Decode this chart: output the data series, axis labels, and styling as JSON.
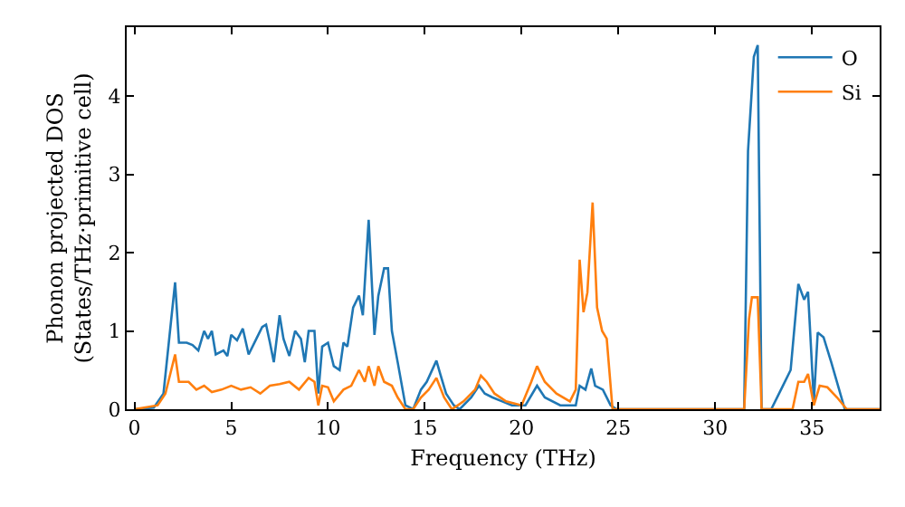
{
  "chart_data": {
    "type": "line",
    "xlabel": "Frequency (THz)",
    "ylabel": "Phonon projected DOS\n(States/THz·primitive cell)",
    "xlim": [
      -0.4,
      38.5
    ],
    "ylim": [
      0,
      4.88
    ],
    "xticks": [
      0,
      5,
      10,
      15,
      20,
      25,
      30,
      35
    ],
    "yticks": [
      0,
      1,
      2,
      3,
      4
    ],
    "grid": false,
    "legend": "top right",
    "series": [
      {
        "name": "O",
        "color": "#1f77b4",
        "x": [
          0,
          1,
          1.5,
          2.1,
          2.3,
          2.7,
          3,
          3.3,
          3.6,
          3.8,
          4,
          4.2,
          4.6,
          4.8,
          5,
          5.3,
          5.6,
          5.9,
          6.3,
          6.6,
          6.8,
          7,
          7.2,
          7.5,
          7.7,
          8,
          8.3,
          8.6,
          8.8,
          9,
          9.3,
          9.5,
          9.7,
          10,
          10.3,
          10.6,
          10.8,
          11,
          11.3,
          11.6,
          11.8,
          12.1,
          12.4,
          12.6,
          12.9,
          13.1,
          13.3,
          13.6,
          14,
          14.4,
          14.8,
          15.1,
          15.6,
          15.8,
          16.1,
          16.5,
          16.8,
          17.4,
          17.8,
          18.1,
          18.5,
          19,
          19.5,
          20.2,
          20.8,
          21.2,
          22,
          22.8,
          23,
          23.3,
          23.6,
          23.8,
          24.2,
          24.6,
          24.9,
          31.5,
          31.7,
          32,
          32.2,
          32.4,
          32.9,
          33.5,
          33.9,
          34.3,
          34.6,
          34.8,
          35.1,
          35.3,
          35.6,
          36,
          36.7,
          38.5
        ],
        "values": [
          0,
          0.02,
          0.2,
          1.62,
          0.85,
          0.85,
          0.82,
          0.75,
          1,
          0.9,
          1,
          0.7,
          0.75,
          0.68,
          0.95,
          0.88,
          1.03,
          0.7,
          0.9,
          1.05,
          1.08,
          0.85,
          0.6,
          1.2,
          0.9,
          0.68,
          1,
          0.9,
          0.6,
          1,
          1,
          0.2,
          0.8,
          0.85,
          0.55,
          0.5,
          0.85,
          0.8,
          1.3,
          1.45,
          1.2,
          2.42,
          0.95,
          1.45,
          1.8,
          1.8,
          1,
          0.6,
          0.05,
          0,
          0.25,
          0.35,
          0.62,
          0.45,
          0.2,
          0.05,
          0,
          0.15,
          0.3,
          0.2,
          0.15,
          0.1,
          0.05,
          0.05,
          0.3,
          0.15,
          0.05,
          0.05,
          0.3,
          0.25,
          0.52,
          0.3,
          0.25,
          0.05,
          0,
          0,
          3.3,
          4.5,
          4.65,
          0,
          0,
          0.3,
          0.5,
          1.6,
          1.4,
          1.5,
          0.1,
          0.98,
          0.92,
          0.6,
          0,
          0
        ]
      },
      {
        "name": "Si",
        "color": "#ff7f0e",
        "x": [
          0,
          1.2,
          1.6,
          2.1,
          2.3,
          2.8,
          3.2,
          3.6,
          4,
          4.5,
          5,
          5.5,
          6,
          6.5,
          7,
          7.5,
          8,
          8.5,
          9,
          9.3,
          9.5,
          9.7,
          10,
          10.3,
          10.8,
          11.2,
          11.6,
          11.9,
          12.1,
          12.4,
          12.6,
          12.9,
          13.3,
          13.6,
          14,
          14.4,
          14.8,
          15.2,
          15.6,
          16,
          16.4,
          17,
          17.6,
          17.9,
          18.2,
          18.6,
          19.2,
          20,
          20.5,
          20.8,
          21.2,
          21.8,
          22.5,
          22.8,
          23,
          23.2,
          23.4,
          23.67,
          23.9,
          24.16,
          24.4,
          24.7,
          31.5,
          31.75,
          31.9,
          32.2,
          32.4,
          34,
          34.3,
          34.6,
          34.8,
          35.1,
          35.4,
          35.8,
          36.3,
          36.8,
          38.5
        ],
        "values": [
          0,
          0.05,
          0.2,
          0.7,
          0.35,
          0.35,
          0.25,
          0.3,
          0.22,
          0.25,
          0.3,
          0.25,
          0.28,
          0.2,
          0.3,
          0.32,
          0.35,
          0.25,
          0.4,
          0.35,
          0.05,
          0.3,
          0.28,
          0.1,
          0.25,
          0.3,
          0.5,
          0.35,
          0.55,
          0.3,
          0.55,
          0.35,
          0.3,
          0.15,
          0,
          0,
          0.15,
          0.25,
          0.4,
          0.15,
          0,
          0.1,
          0.25,
          0.43,
          0.35,
          0.2,
          0.1,
          0.05,
          0.35,
          0.55,
          0.35,
          0.2,
          0.1,
          0.25,
          1.91,
          1.24,
          1.49,
          2.64,
          1.3,
          1,
          0.9,
          0,
          0,
          1.15,
          1.43,
          1.43,
          0,
          0,
          0.35,
          0.35,
          0.45,
          0.05,
          0.3,
          0.28,
          0.15,
          0,
          0
        ]
      }
    ]
  }
}
